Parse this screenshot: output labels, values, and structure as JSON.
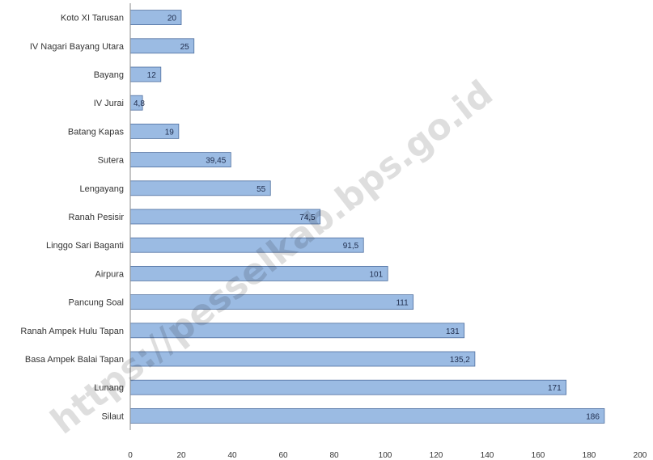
{
  "chart_data": {
    "type": "bar",
    "orientation": "horizontal",
    "categories": [
      "Koto XI Tarusan",
      "IV Nagari Bayang Utara",
      "Bayang",
      "IV Jurai",
      "Batang Kapas",
      "Sutera",
      "Lengayang",
      "Ranah Pesisir",
      "Linggo Sari Baganti",
      "Airpura",
      "Pancung Soal",
      "Ranah Ampek Hulu Tapan",
      "Basa Ampek Balai Tapan",
      "Lunang",
      "Silaut"
    ],
    "values": [
      20,
      25,
      12,
      4.8,
      19,
      39.45,
      55,
      74.5,
      91.5,
      101,
      111,
      131,
      135.2,
      171,
      186
    ],
    "value_labels": [
      "20",
      "25",
      "12",
      "4,8",
      "19",
      "39,45",
      "55",
      "74,5",
      "91,5",
      "101",
      "111",
      "131",
      "135,2",
      "171",
      "186"
    ],
    "x_ticks": [
      0,
      20,
      40,
      60,
      80,
      100,
      120,
      140,
      160,
      180,
      200
    ],
    "xlim": [
      0,
      200
    ],
    "title": "",
    "xlabel": "",
    "ylabel": "",
    "grid": false,
    "legend": "none",
    "bar_color": "#9bbbe3",
    "bar_edge_color": "#4f6f9f"
  },
  "watermark": {
    "text": "https://pesselkab.bps.go.id",
    "color": "#000000"
  }
}
